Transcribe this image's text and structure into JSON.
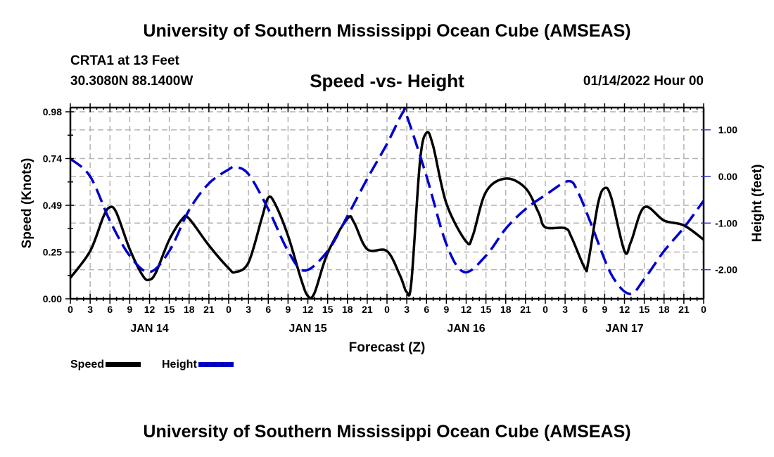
{
  "header": {
    "title": "University of Southern Mississippi Ocean Cube (AMSEAS)",
    "station": "CRTA1 at 13 Feet",
    "coordinates": "30.3080N  88.1400W",
    "subtitle": "Speed -vs- Height",
    "datestamp": "01/14/2022 Hour 00"
  },
  "footer": {
    "title": "University of Southern Mississippi Ocean Cube (AMSEAS)"
  },
  "chart_data": {
    "type": "line",
    "title": "Speed -vs- Height",
    "xlabel": "Forecast (Z)",
    "ylabel": "Speed (Knots)",
    "y2label": "Height (feet)",
    "xlim": [
      0,
      96
    ],
    "ylim": [
      0,
      0.98
    ],
    "y2lim": [
      -2.6,
      1.4
    ],
    "grid": true,
    "legend_position": "bottom-left",
    "x_tick_labels": [
      "0",
      "3",
      "6",
      "9",
      "12",
      "15",
      "18",
      "21",
      "0",
      "3",
      "6",
      "9",
      "12",
      "15",
      "18",
      "21",
      "0",
      "3",
      "6",
      "9",
      "12",
      "15",
      "18",
      "21",
      "0",
      "3",
      "6",
      "9",
      "12",
      "15",
      "18",
      "21",
      "0"
    ],
    "x_tick_hours": [
      0,
      3,
      6,
      9,
      12,
      15,
      18,
      21,
      24,
      27,
      30,
      33,
      36,
      39,
      42,
      45,
      48,
      51,
      54,
      57,
      60,
      63,
      66,
      69,
      72,
      75,
      78,
      81,
      84,
      87,
      90,
      93,
      96
    ],
    "day_labels": [
      {
        "label": "JAN 14",
        "hour": 12
      },
      {
        "label": "JAN 15",
        "hour": 36
      },
      {
        "label": "JAN 16",
        "hour": 60
      },
      {
        "label": "JAN 17",
        "hour": 84
      }
    ],
    "y_ticks": [
      "0.00",
      "0.25",
      "0.49",
      "0.74",
      "0.98"
    ],
    "y_tick_values": [
      0,
      0.245,
      0.49,
      0.735,
      0.98
    ],
    "y2_ticks": [
      "-2.00",
      "-1.00",
      "0.00",
      "1.00"
    ],
    "y2_tick_values": [
      -2,
      -1,
      0,
      1
    ],
    "series": [
      {
        "name": "Speed",
        "axis": "left",
        "color": "#000000",
        "style": "solid",
        "x": [
          0,
          3,
          5,
          6,
          7,
          9,
          11,
          12,
          13,
          15,
          17,
          18,
          21,
          24,
          25,
          27,
          29,
          30,
          31,
          33,
          35,
          36,
          37,
          39,
          42,
          43,
          45,
          48,
          50,
          51,
          51.7,
          53,
          54,
          55,
          57,
          60,
          61,
          63,
          66,
          69,
          71,
          72,
          75,
          76,
          78,
          78.5,
          80,
          81,
          82,
          84,
          85,
          87,
          90,
          93,
          96
        ],
        "values": [
          0.11,
          0.25,
          0.43,
          0.48,
          0.45,
          0.26,
          0.12,
          0.1,
          0.14,
          0.31,
          0.42,
          0.42,
          0.28,
          0.16,
          0.14,
          0.19,
          0.42,
          0.53,
          0.5,
          0.33,
          0.1,
          0.015,
          0.03,
          0.24,
          0.42,
          0.4,
          0.26,
          0.25,
          0.12,
          0.035,
          0.09,
          0.72,
          0.87,
          0.8,
          0.5,
          0.3,
          0.33,
          0.56,
          0.63,
          0.58,
          0.45,
          0.375,
          0.37,
          0.32,
          0.16,
          0.19,
          0.5,
          0.58,
          0.53,
          0.25,
          0.3,
          0.48,
          0.41,
          0.385,
          0.31
        ]
      },
      {
        "name": "Height",
        "axis": "right",
        "color": "#0000cc",
        "style": "dashed",
        "x": [
          0,
          3,
          6,
          9,
          12,
          15,
          18,
          21,
          24,
          25,
          27,
          30,
          33,
          35.5,
          39,
          42,
          45,
          48,
          50.4,
          51,
          54,
          57,
          59.7,
          63,
          66,
          69,
          72,
          75.5,
          77,
          79,
          82,
          84.8,
          87,
          90,
          93,
          96
        ],
        "values": [
          0.38,
          0.0,
          -0.95,
          -1.7,
          -2.05,
          -1.6,
          -0.72,
          -0.15,
          0.15,
          0.2,
          0.05,
          -0.7,
          -1.6,
          -2.02,
          -1.6,
          -0.85,
          -0.05,
          0.7,
          1.37,
          1.3,
          0.0,
          -1.45,
          -2.05,
          -1.7,
          -1.12,
          -0.7,
          -0.4,
          -0.1,
          -0.35,
          -1.04,
          -2.1,
          -2.52,
          -2.2,
          -1.6,
          -1.1,
          -0.52
        ]
      }
    ]
  }
}
